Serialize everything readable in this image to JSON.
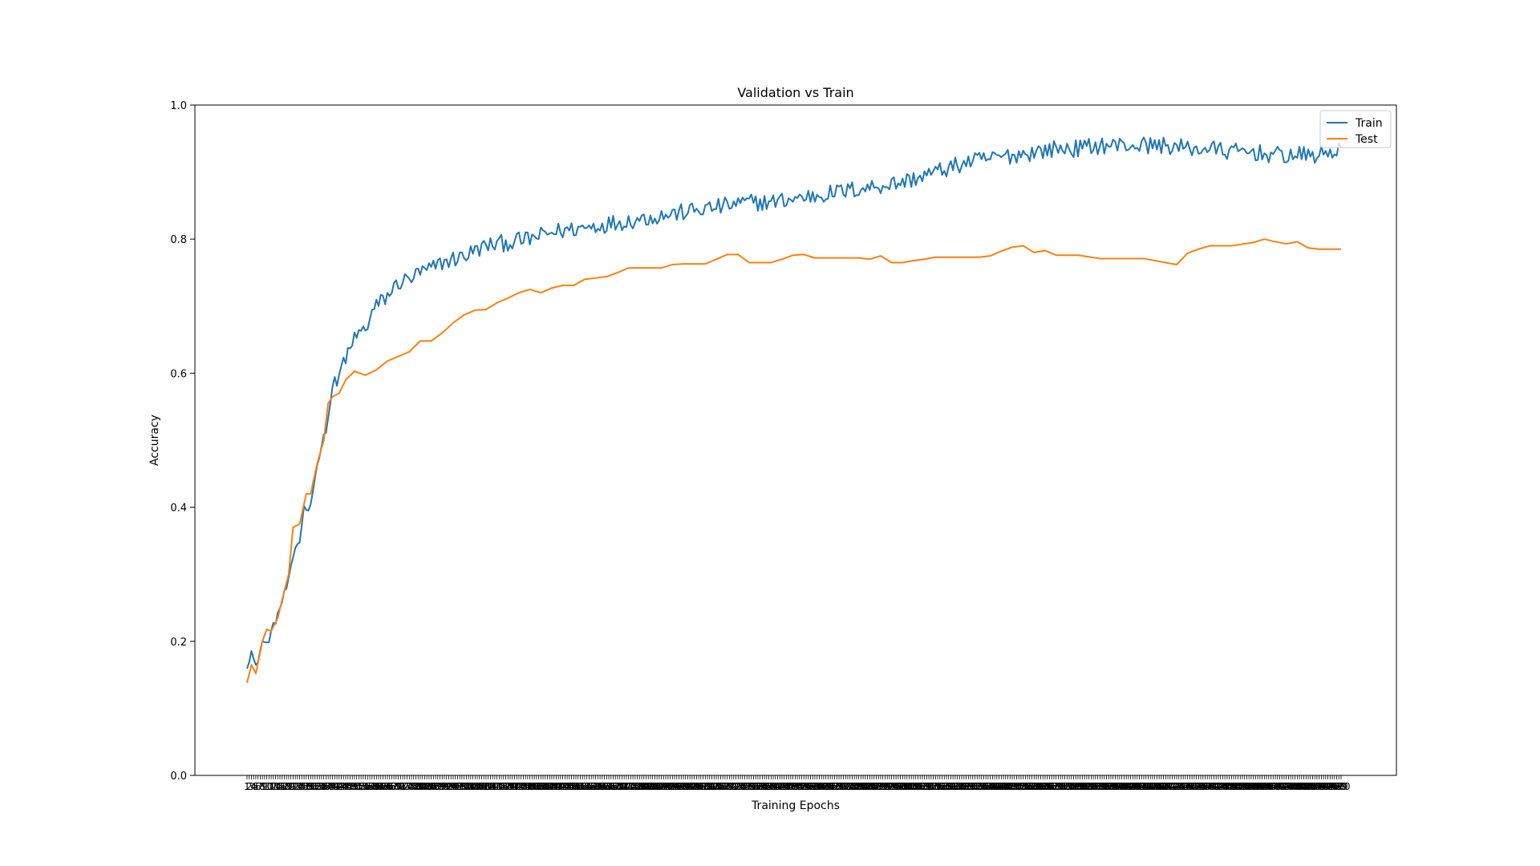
{
  "chart_data": {
    "type": "line",
    "title": "Validation vs Train",
    "xlabel": "Training Epochs",
    "ylabel": "Accuracy",
    "xlim": [
      1,
      500
    ],
    "ylim": [
      0.0,
      1.0
    ],
    "y_ticks": [
      "0.0",
      "0.2",
      "0.4",
      "0.6",
      "0.8",
      "1.0"
    ],
    "x_ticks_note": "one tick label per epoch 1..500, overlapping",
    "grid": false,
    "legend_position": "top-right",
    "series": [
      {
        "name": "Train",
        "color": "#1f77b4",
        "points": [
          [
            1,
            0.165
          ],
          [
            3,
            0.185
          ],
          [
            5,
            0.16
          ],
          [
            8,
            0.2
          ],
          [
            10,
            0.195
          ],
          [
            15,
            0.24
          ],
          [
            18,
            0.27
          ],
          [
            20,
            0.29
          ],
          [
            23,
            0.34
          ],
          [
            25,
            0.35
          ],
          [
            27,
            0.4
          ],
          [
            30,
            0.4
          ],
          [
            32,
            0.45
          ],
          [
            35,
            0.49
          ],
          [
            38,
            0.53
          ],
          [
            40,
            0.585
          ],
          [
            42,
            0.58
          ],
          [
            45,
            0.62
          ],
          [
            48,
            0.63
          ],
          [
            50,
            0.655
          ],
          [
            55,
            0.665
          ],
          [
            58,
            0.69
          ],
          [
            60,
            0.7
          ],
          [
            65,
            0.715
          ],
          [
            70,
            0.735
          ],
          [
            75,
            0.74
          ],
          [
            80,
            0.75
          ],
          [
            85,
            0.755
          ],
          [
            90,
            0.765
          ],
          [
            95,
            0.77
          ],
          [
            100,
            0.775
          ],
          [
            110,
            0.79
          ],
          [
            120,
            0.795
          ],
          [
            130,
            0.8
          ],
          [
            140,
            0.81
          ],
          [
            150,
            0.815
          ],
          [
            160,
            0.82
          ],
          [
            170,
            0.825
          ],
          [
            180,
            0.83
          ],
          [
            190,
            0.835
          ],
          [
            200,
            0.84
          ],
          [
            210,
            0.845
          ],
          [
            220,
            0.85
          ],
          [
            230,
            0.855
          ],
          [
            240,
            0.855
          ],
          [
            250,
            0.86
          ],
          [
            260,
            0.865
          ],
          [
            270,
            0.87
          ],
          [
            280,
            0.875
          ],
          [
            290,
            0.88
          ],
          [
            300,
            0.885
          ],
          [
            310,
            0.895
          ],
          [
            320,
            0.905
          ],
          [
            330,
            0.915
          ],
          [
            340,
            0.92
          ],
          [
            350,
            0.925
          ],
          [
            360,
            0.93
          ],
          [
            370,
            0.935
          ],
          [
            380,
            0.935
          ],
          [
            390,
            0.94
          ],
          [
            400,
            0.94
          ],
          [
            410,
            0.94
          ],
          [
            420,
            0.94
          ],
          [
            430,
            0.935
          ],
          [
            440,
            0.935
          ],
          [
            450,
            0.93
          ],
          [
            460,
            0.93
          ],
          [
            470,
            0.925
          ],
          [
            480,
            0.925
          ],
          [
            490,
            0.925
          ],
          [
            500,
            0.935
          ]
        ]
      },
      {
        "name": "Test",
        "color": "#ff7f0e",
        "points": [
          [
            1,
            0.138
          ],
          [
            3,
            0.165
          ],
          [
            5,
            0.152
          ],
          [
            8,
            0.2
          ],
          [
            10,
            0.218
          ],
          [
            12,
            0.215
          ],
          [
            15,
            0.235
          ],
          [
            18,
            0.275
          ],
          [
            20,
            0.3
          ],
          [
            22,
            0.37
          ],
          [
            25,
            0.375
          ],
          [
            28,
            0.42
          ],
          [
            30,
            0.42
          ],
          [
            33,
            0.465
          ],
          [
            36,
            0.5
          ],
          [
            38,
            0.555
          ],
          [
            40,
            0.565
          ],
          [
            43,
            0.57
          ],
          [
            46,
            0.59
          ],
          [
            50,
            0.603
          ],
          [
            55,
            0.597
          ],
          [
            60,
            0.605
          ],
          [
            65,
            0.618
          ],
          [
            70,
            0.625
          ],
          [
            75,
            0.632
          ],
          [
            80,
            0.648
          ],
          [
            85,
            0.648
          ],
          [
            90,
            0.66
          ],
          [
            95,
            0.675
          ],
          [
            100,
            0.687
          ],
          [
            105,
            0.694
          ],
          [
            110,
            0.695
          ],
          [
            115,
            0.705
          ],
          [
            120,
            0.712
          ],
          [
            125,
            0.72
          ],
          [
            130,
            0.725
          ],
          [
            135,
            0.72
          ],
          [
            140,
            0.727
          ],
          [
            145,
            0.731
          ],
          [
            150,
            0.731
          ],
          [
            155,
            0.74
          ],
          [
            160,
            0.742
          ],
          [
            165,
            0.744
          ],
          [
            170,
            0.75
          ],
          [
            175,
            0.757
          ],
          [
            180,
            0.757
          ],
          [
            190,
            0.757
          ],
          [
            195,
            0.762
          ],
          [
            200,
            0.763
          ],
          [
            210,
            0.763
          ],
          [
            215,
            0.77
          ],
          [
            220,
            0.777
          ],
          [
            225,
            0.777
          ],
          [
            230,
            0.765
          ],
          [
            240,
            0.765
          ],
          [
            245,
            0.77
          ],
          [
            250,
            0.776
          ],
          [
            255,
            0.777
          ],
          [
            260,
            0.772
          ],
          [
            270,
            0.772
          ],
          [
            280,
            0.772
          ],
          [
            285,
            0.77
          ],
          [
            290,
            0.775
          ],
          [
            295,
            0.765
          ],
          [
            300,
            0.765
          ],
          [
            305,
            0.768
          ],
          [
            310,
            0.77
          ],
          [
            315,
            0.773
          ],
          [
            320,
            0.773
          ],
          [
            330,
            0.773
          ],
          [
            335,
            0.773
          ],
          [
            340,
            0.775
          ],
          [
            345,
            0.782
          ],
          [
            350,
            0.788
          ],
          [
            355,
            0.79
          ],
          [
            360,
            0.78
          ],
          [
            365,
            0.783
          ],
          [
            370,
            0.776
          ],
          [
            380,
            0.776
          ],
          [
            390,
            0.771
          ],
          [
            400,
            0.771
          ],
          [
            410,
            0.771
          ],
          [
            420,
            0.765
          ],
          [
            425,
            0.762
          ],
          [
            430,
            0.779
          ],
          [
            435,
            0.785
          ],
          [
            440,
            0.79
          ],
          [
            450,
            0.79
          ],
          [
            460,
            0.795
          ],
          [
            465,
            0.8
          ],
          [
            470,
            0.796
          ],
          [
            475,
            0.793
          ],
          [
            480,
            0.796
          ],
          [
            485,
            0.787
          ],
          [
            490,
            0.785
          ],
          [
            495,
            0.785
          ],
          [
            500,
            0.785
          ]
        ]
      }
    ]
  }
}
